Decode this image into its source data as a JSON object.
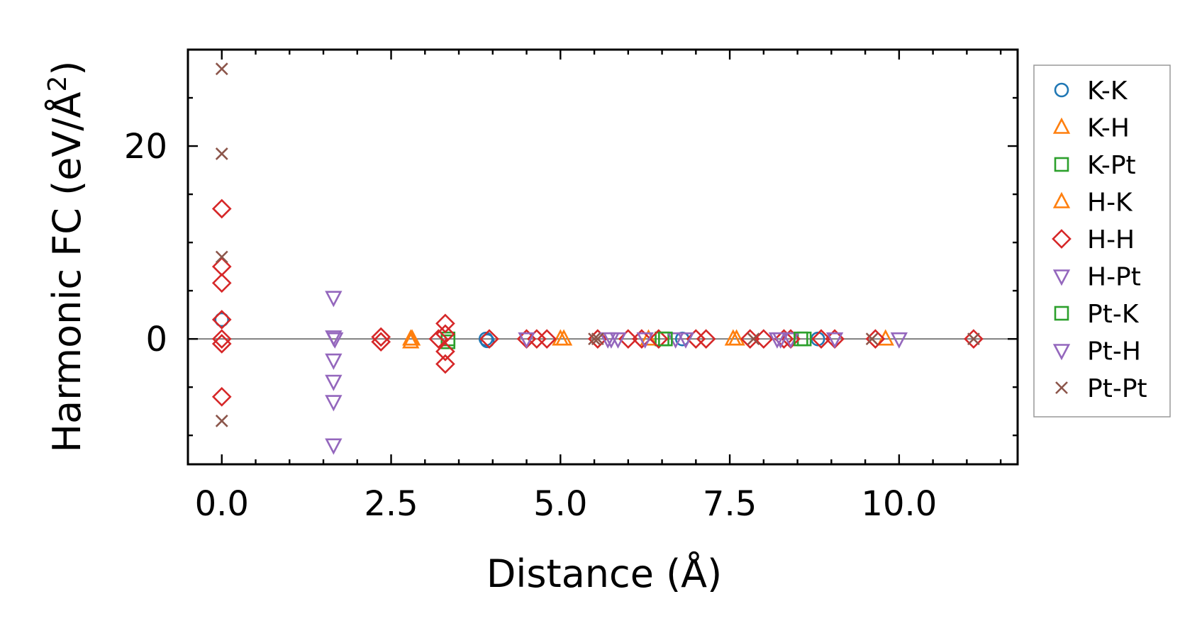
{
  "chart_data": {
    "type": "scatter",
    "xlabel": "Distance (Å)",
    "ylabel_main": "Harmonic FC (eV/Å",
    "ylabel_sup": "2",
    "ylabel_end": ")",
    "xlim": [
      -0.5,
      11.75
    ],
    "ylim": [
      -13,
      30
    ],
    "xticks": [
      0.0,
      2.5,
      5.0,
      7.5,
      10.0
    ],
    "xtick_labels": [
      "0.0",
      "2.5",
      "5.0",
      "7.5",
      "10.0"
    ],
    "yticks": [
      0,
      20
    ],
    "ytick_labels": [
      "0",
      "20"
    ],
    "legend_position": "outside-right",
    "zero_line": true,
    "series": [
      {
        "name": "K-K",
        "marker": "circle",
        "color": "#1f77b4",
        "points": [
          [
            0.0,
            2.0
          ],
          [
            3.9,
            0.0
          ],
          [
            3.92,
            -0.2
          ],
          [
            6.8,
            0.0
          ],
          [
            8.8,
            0.0
          ]
        ]
      },
      {
        "name": "K-H",
        "marker": "triangle-up",
        "color": "#ff7f0e",
        "points": [
          [
            2.79,
            0.0
          ],
          [
            2.79,
            -0.3
          ],
          [
            5.0,
            0.0
          ],
          [
            5.05,
            0.0
          ],
          [
            6.3,
            0.0
          ],
          [
            7.6,
            0.0
          ],
          [
            9.8,
            0.0
          ]
        ]
      },
      {
        "name": "K-Pt",
        "marker": "square",
        "color": "#2ca02c",
        "points": [
          [
            3.34,
            0.0
          ],
          [
            3.34,
            -0.3
          ],
          [
            6.5,
            0.0
          ],
          [
            8.6,
            0.0
          ]
        ]
      },
      {
        "name": "H-K",
        "marker": "triangle-up",
        "color": "#ff7f0e",
        "points": [
          [
            2.81,
            0.0
          ],
          [
            7.55,
            0.0
          ]
        ]
      },
      {
        "name": "H-H",
        "marker": "diamond",
        "color": "#d62728",
        "points": [
          [
            0.0,
            13.5
          ],
          [
            0.0,
            7.5
          ],
          [
            0.0,
            5.8
          ],
          [
            0.0,
            2.0
          ],
          [
            0.0,
            0.0
          ],
          [
            0.0,
            -0.5
          ],
          [
            0.0,
            -6.0
          ],
          [
            2.35,
            0.2
          ],
          [
            2.35,
            -0.3
          ],
          [
            3.2,
            0.0
          ],
          [
            3.3,
            1.6
          ],
          [
            3.3,
            0.5
          ],
          [
            3.3,
            -1.3
          ],
          [
            3.3,
            -2.6
          ],
          [
            3.95,
            0.0
          ],
          [
            4.5,
            0.0
          ],
          [
            4.65,
            0.0
          ],
          [
            4.8,
            0.0
          ],
          [
            5.55,
            0.0
          ],
          [
            6.0,
            0.0
          ],
          [
            6.2,
            0.0
          ],
          [
            6.45,
            0.0
          ],
          [
            7.0,
            0.0
          ],
          [
            7.15,
            0.0
          ],
          [
            7.8,
            0.0
          ],
          [
            8.0,
            0.0
          ],
          [
            8.3,
            0.0
          ],
          [
            8.4,
            0.0
          ],
          [
            8.85,
            0.0
          ],
          [
            9.05,
            0.0
          ],
          [
            9.65,
            0.0
          ],
          [
            11.1,
            0.0
          ]
        ]
      },
      {
        "name": "H-Pt",
        "marker": "triangle-down",
        "color": "#9467bd",
        "points": [
          [
            1.65,
            4.3
          ],
          [
            1.65,
            0.2
          ],
          [
            1.65,
            -2.2
          ],
          [
            1.65,
            -4.4
          ],
          [
            1.65,
            -6.5
          ],
          [
            1.65,
            -11.0
          ],
          [
            4.5,
            0.0
          ],
          [
            5.7,
            0.0
          ],
          [
            5.85,
            0.0
          ],
          [
            6.25,
            0.0
          ],
          [
            6.7,
            0.0
          ],
          [
            6.85,
            0.0
          ],
          [
            8.2,
            0.0
          ],
          [
            8.4,
            0.0
          ],
          [
            9.05,
            0.0
          ],
          [
            10.0,
            0.0
          ]
        ]
      },
      {
        "name": "Pt-K",
        "marker": "square",
        "color": "#2ca02c",
        "points": [
          [
            6.55,
            0.0
          ],
          [
            8.55,
            0.0
          ]
        ]
      },
      {
        "name": "Pt-H",
        "marker": "triangle-down",
        "color": "#9467bd",
        "points": [
          [
            1.67,
            0.0
          ],
          [
            5.75,
            0.0
          ],
          [
            8.25,
            0.0
          ]
        ]
      },
      {
        "name": "Pt-Pt",
        "marker": "x",
        "color": "#8c564b",
        "points": [
          [
            0.0,
            28.0
          ],
          [
            0.0,
            19.2
          ],
          [
            0.0,
            8.5
          ],
          [
            0.0,
            -8.5
          ],
          [
            5.5,
            0.0
          ],
          [
            5.55,
            0.0
          ],
          [
            7.85,
            0.0
          ],
          [
            9.6,
            0.0
          ],
          [
            11.1,
            0.0
          ]
        ]
      }
    ]
  }
}
